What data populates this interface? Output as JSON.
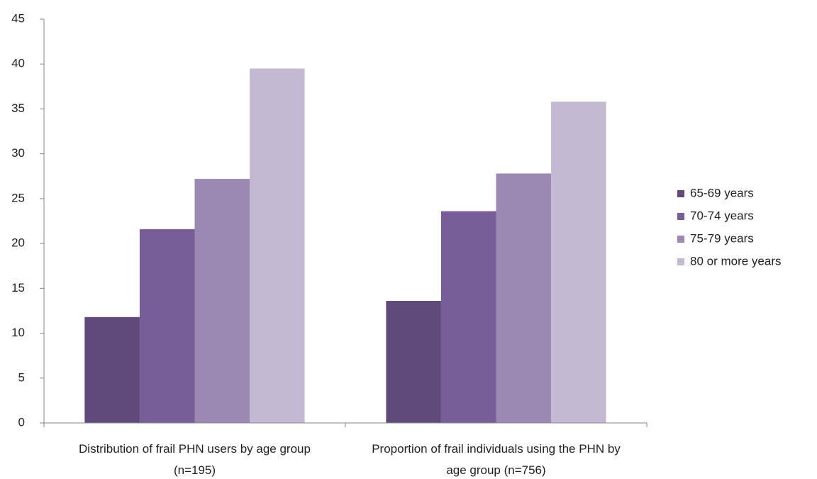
{
  "chart_data": {
    "type": "bar",
    "categories": [
      "Distribution of frail PHN users by age group (n=195)",
      "Proportion of frail individuals using the PHN by age group (n=756)"
    ],
    "series": [
      {
        "name": "65-69 years",
        "color": "#604a7b",
        "values": [
          11.8,
          13.6
        ]
      },
      {
        "name": "70-74 years",
        "color": "#775e98",
        "values": [
          21.6,
          23.6
        ]
      },
      {
        "name": "75-79 years",
        "color": "#9b89b4",
        "values": [
          27.2,
          27.8
        ]
      },
      {
        "name": "80 or more years",
        "color": "#c3b9d2",
        "values": [
          39.5,
          35.8
        ]
      }
    ],
    "ylim": [
      0,
      45
    ],
    "yticks": [
      0,
      5,
      10,
      15,
      20,
      25,
      30,
      35,
      40,
      45
    ],
    "grid": false,
    "legend": "right"
  }
}
